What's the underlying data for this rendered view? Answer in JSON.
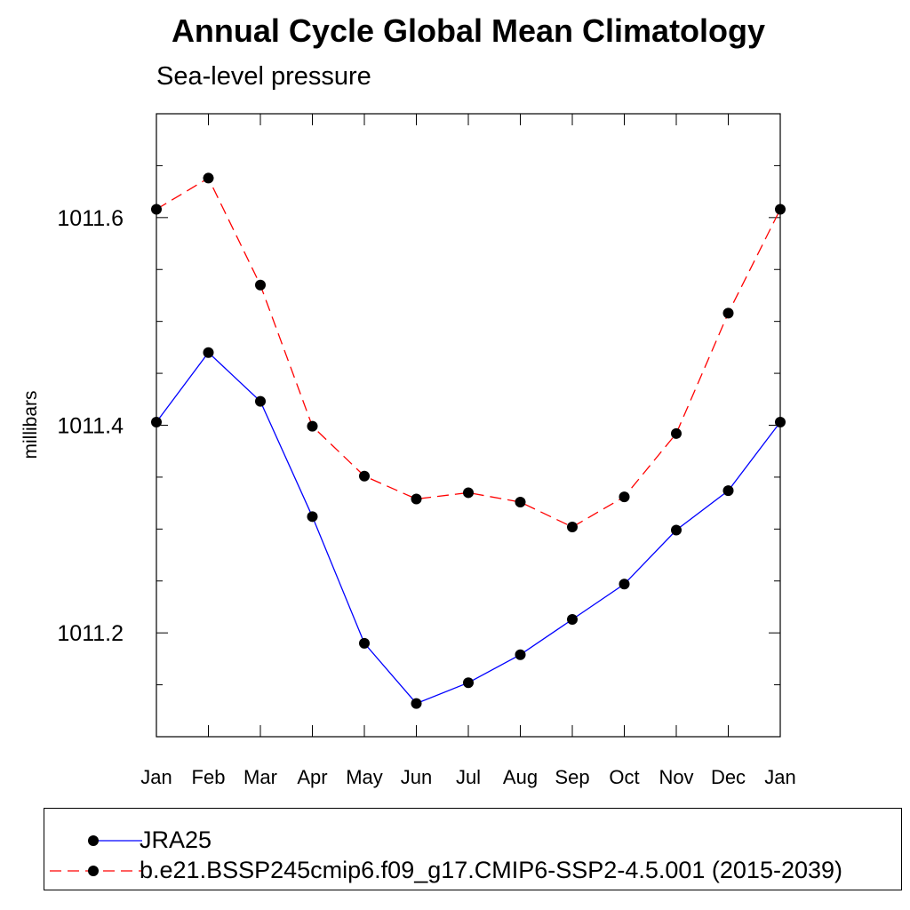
{
  "chart_data": {
    "type": "line",
    "title": "Annual Cycle Global Mean Climatology",
    "subtitle": "Sea-level pressure",
    "xlabel": "",
    "ylabel": "millibars",
    "categories": [
      "Jan",
      "Feb",
      "Mar",
      "Apr",
      "May",
      "Jun",
      "Jul",
      "Aug",
      "Sep",
      "Oct",
      "Nov",
      "Dec",
      "Jan"
    ],
    "ylim": [
      1011.1,
      1011.7
    ],
    "yticks_major": [
      1011.2,
      1011.4,
      1011.6
    ],
    "ytick_labels": [
      "1011.2",
      "1011.4",
      "1011.6"
    ],
    "yticks_minor_step": 0.05,
    "grid": false,
    "legend_position": "bottom",
    "series": [
      {
        "name": "JRA25",
        "color": "#0000ff",
        "dash": "solid",
        "marker": "circle",
        "values": [
          1011.403,
          1011.47,
          1011.423,
          1011.312,
          1011.19,
          1011.132,
          1011.152,
          1011.179,
          1011.213,
          1011.247,
          1011.299,
          1011.337,
          1011.403
        ]
      },
      {
        "name": "b.e21.BSSP245cmip6.f09_g17.CMIP6-SSP2-4.5.001 (2015-2039)",
        "color": "#ff0000",
        "dash": "dashed",
        "marker": "circle",
        "values": [
          1011.608,
          1011.638,
          1011.535,
          1011.399,
          1011.351,
          1011.329,
          1011.335,
          1011.326,
          1011.302,
          1011.331,
          1011.392,
          1011.508,
          1011.608
        ]
      }
    ]
  }
}
